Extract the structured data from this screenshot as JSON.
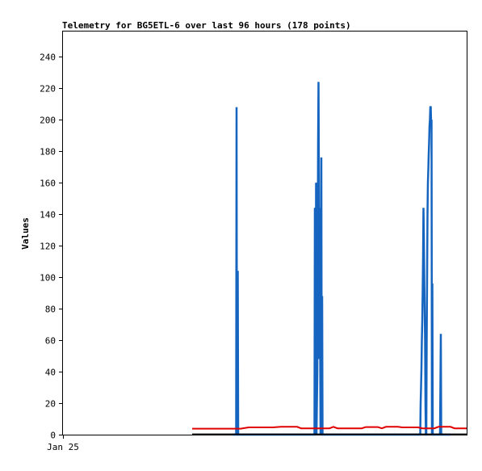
{
  "chart_data": {
    "type": "line",
    "title": "Telemetry for BG5ETL-6 over last 96 hours (178 points)",
    "xlabel": "",
    "ylabel": "Values",
    "x_tick_labels": [
      "Jan 25"
    ],
    "y_ticks": [
      0,
      20,
      40,
      60,
      80,
      100,
      120,
      140,
      160,
      180,
      200,
      220,
      240
    ],
    "ylim": [
      0,
      256
    ],
    "xlim": [
      0,
      96
    ],
    "grid": false,
    "legend": "none",
    "series": [
      {
        "color": "#1565c0",
        "points": [
          [
            42,
            0
          ],
          [
            42.9,
            0
          ],
          [
            43.0,
            208
          ],
          [
            43.1,
            0
          ],
          [
            43.3,
            104
          ],
          [
            43.4,
            0
          ],
          [
            62.3,
            0
          ],
          [
            62.4,
            144
          ],
          [
            62.5,
            0
          ],
          [
            62.7,
            160
          ],
          [
            62.8,
            0
          ],
          [
            63.0,
            38
          ],
          [
            63.1,
            112
          ],
          [
            63.2,
            186
          ],
          [
            63.3,
            224
          ],
          [
            63.4,
            160
          ],
          [
            63.5,
            48
          ],
          [
            63.6,
            144
          ],
          [
            63.7,
            60
          ],
          [
            63.8,
            0
          ],
          [
            64.0,
            176
          ],
          [
            64.1,
            0
          ],
          [
            64.2,
            88
          ],
          [
            64.3,
            0
          ],
          [
            88.5,
            0
          ],
          [
            88.6,
            20
          ],
          [
            88.7,
            30
          ],
          [
            88.8,
            42
          ],
          [
            88.9,
            60
          ],
          [
            89.0,
            72
          ],
          [
            89.1,
            90
          ],
          [
            89.2,
            112
          ],
          [
            89.3,
            144
          ],
          [
            89.4,
            126
          ],
          [
            89.5,
            100
          ],
          [
            89.6,
            80
          ],
          [
            89.7,
            60
          ],
          [
            89.8,
            18
          ],
          [
            89.9,
            0
          ],
          [
            90.0,
            0
          ],
          [
            90.1,
            60
          ],
          [
            90.2,
            100
          ],
          [
            90.3,
            140
          ],
          [
            90.4,
            160
          ],
          [
            90.5,
            168
          ],
          [
            90.6,
            178
          ],
          [
            90.7,
            186
          ],
          [
            90.8,
            196
          ],
          [
            90.9,
            200
          ],
          [
            91.0,
            208
          ],
          [
            91.1,
            208
          ],
          [
            91.2,
            198
          ],
          [
            91.3,
            200
          ],
          [
            91.4,
            0
          ],
          [
            91.5,
            96
          ],
          [
            91.6,
            0
          ],
          [
            93.4,
            0
          ],
          [
            93.5,
            32
          ],
          [
            93.6,
            64
          ],
          [
            93.7,
            0
          ],
          [
            96,
            0
          ]
        ]
      },
      {
        "color": "#e00000",
        "points": [
          [
            32,
            3.8
          ],
          [
            38,
            3.8
          ],
          [
            44,
            3.8
          ],
          [
            46,
            4.6
          ],
          [
            52,
            4.6
          ],
          [
            54,
            5.0
          ],
          [
            58,
            5.0
          ],
          [
            59,
            4.0
          ],
          [
            66,
            4.0
          ],
          [
            67,
            5.0
          ],
          [
            68,
            4.0
          ],
          [
            74,
            4.0
          ],
          [
            75,
            4.8
          ],
          [
            78,
            4.8
          ],
          [
            79,
            4.0
          ],
          [
            80,
            5.0
          ],
          [
            83,
            5.0
          ],
          [
            84,
            4.6
          ],
          [
            88,
            4.6
          ],
          [
            89,
            4.0
          ],
          [
            92,
            4.0
          ],
          [
            93,
            5.0
          ],
          [
            96,
            5.0
          ],
          [
            97,
            4.0
          ],
          [
            103,
            4.0
          ]
        ]
      },
      {
        "color": "#000000",
        "points": [
          [
            32,
            0.2
          ],
          [
            96,
            0.2
          ],
          [
            103,
            0.2
          ]
        ]
      }
    ]
  }
}
